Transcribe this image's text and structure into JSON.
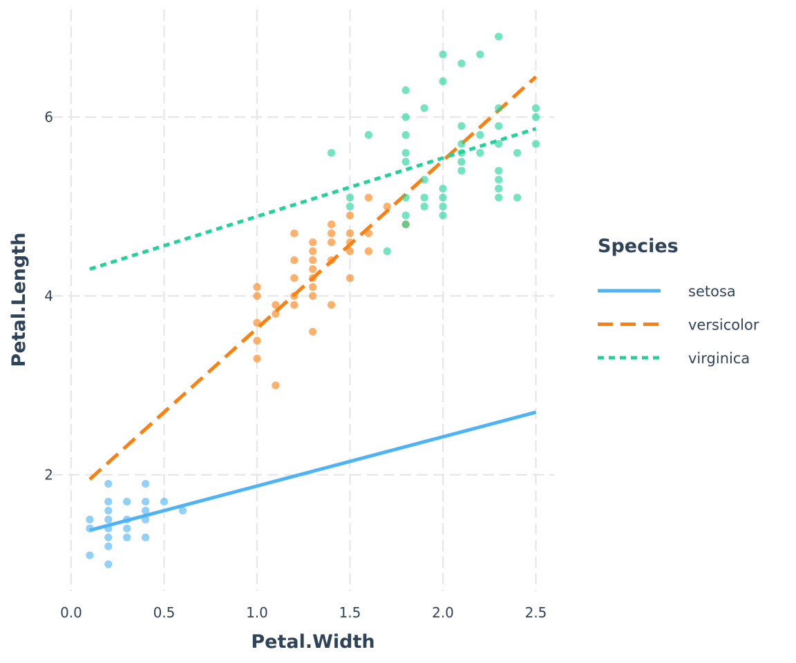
{
  "chart_data": {
    "type": "scatter",
    "xlabel": "Petal.Width",
    "ylabel": "Petal.Length",
    "xlim": [
      0,
      2.6
    ],
    "ylim": [
      0.7,
      7.2
    ],
    "x_ticks": [
      0.0,
      0.5,
      1.0,
      1.5,
      2.0,
      2.5
    ],
    "x_tick_labels": [
      "0.0",
      "0.5",
      "1.0",
      "1.5",
      "2.0",
      "2.5"
    ],
    "y_ticks": [
      2,
      4,
      6
    ],
    "y_tick_labels": [
      "2",
      "4",
      "6"
    ],
    "grid": true,
    "legend": {
      "title": "Species",
      "placement": "right",
      "entries": [
        {
          "name": "setosa",
          "color": "#4db3f5",
          "line_style": "solid"
        },
        {
          "name": "versicolor",
          "color": "#ff7f0e",
          "line_style": "dashed"
        },
        {
          "name": "virginica",
          "color": "#1fd39a",
          "line_style": "dotted"
        }
      ]
    },
    "series": [
      {
        "name": "setosa",
        "color": "#4db3f5",
        "points": [
          [
            0.1,
            1.1
          ],
          [
            0.1,
            1.4
          ],
          [
            0.1,
            1.5
          ],
          [
            0.2,
            1.0
          ],
          [
            0.2,
            1.2
          ],
          [
            0.2,
            1.3
          ],
          [
            0.2,
            1.4
          ],
          [
            0.2,
            1.5
          ],
          [
            0.2,
            1.6
          ],
          [
            0.2,
            1.7
          ],
          [
            0.2,
            1.9
          ],
          [
            0.3,
            1.3
          ],
          [
            0.3,
            1.4
          ],
          [
            0.3,
            1.5
          ],
          [
            0.3,
            1.7
          ],
          [
            0.4,
            1.3
          ],
          [
            0.4,
            1.5
          ],
          [
            0.4,
            1.6
          ],
          [
            0.4,
            1.7
          ],
          [
            0.4,
            1.9
          ],
          [
            0.5,
            1.7
          ],
          [
            0.6,
            1.6
          ]
        ],
        "fit": {
          "x": [
            0.1,
            2.5
          ],
          "y": [
            1.38,
            2.7
          ]
        }
      },
      {
        "name": "versicolor",
        "color": "#ff7f0e",
        "points": [
          [
            1.0,
            3.3
          ],
          [
            1.0,
            3.5
          ],
          [
            1.0,
            3.7
          ],
          [
            1.0,
            4.0
          ],
          [
            1.0,
            4.1
          ],
          [
            1.1,
            3.0
          ],
          [
            1.1,
            3.8
          ],
          [
            1.1,
            3.9
          ],
          [
            1.2,
            3.9
          ],
          [
            1.2,
            4.0
          ],
          [
            1.2,
            4.2
          ],
          [
            1.2,
            4.4
          ],
          [
            1.2,
            4.7
          ],
          [
            1.3,
            3.6
          ],
          [
            1.3,
            4.0
          ],
          [
            1.3,
            4.1
          ],
          [
            1.3,
            4.2
          ],
          [
            1.3,
            4.3
          ],
          [
            1.3,
            4.4
          ],
          [
            1.3,
            4.5
          ],
          [
            1.3,
            4.6
          ],
          [
            1.4,
            3.9
          ],
          [
            1.4,
            4.4
          ],
          [
            1.4,
            4.6
          ],
          [
            1.4,
            4.7
          ],
          [
            1.4,
            4.8
          ],
          [
            1.5,
            4.2
          ],
          [
            1.5,
            4.5
          ],
          [
            1.5,
            4.6
          ],
          [
            1.5,
            4.7
          ],
          [
            1.5,
            4.9
          ],
          [
            1.6,
            4.5
          ],
          [
            1.6,
            4.7
          ],
          [
            1.6,
            5.1
          ],
          [
            1.7,
            5.0
          ],
          [
            1.8,
            4.8
          ]
        ],
        "fit": {
          "x": [
            0.1,
            2.5
          ],
          "y": [
            1.95,
            6.45
          ]
        }
      },
      {
        "name": "virginica",
        "color": "#1fd39a",
        "points": [
          [
            1.4,
            5.6
          ],
          [
            1.5,
            5.0
          ],
          [
            1.5,
            5.1
          ],
          [
            1.6,
            5.8
          ],
          [
            1.7,
            4.5
          ],
          [
            1.8,
            4.8
          ],
          [
            1.8,
            4.9
          ],
          [
            1.8,
            5.1
          ],
          [
            1.8,
            5.5
          ],
          [
            1.8,
            5.6
          ],
          [
            1.8,
            5.8
          ],
          [
            1.8,
            6.0
          ],
          [
            1.8,
            6.3
          ],
          [
            1.9,
            5.0
          ],
          [
            1.9,
            5.1
          ],
          [
            1.9,
            5.3
          ],
          [
            1.9,
            6.1
          ],
          [
            2.0,
            4.9
          ],
          [
            2.0,
            5.0
          ],
          [
            2.0,
            5.1
          ],
          [
            2.0,
            5.2
          ],
          [
            2.0,
            6.4
          ],
          [
            2.0,
            6.7
          ],
          [
            2.1,
            5.4
          ],
          [
            2.1,
            5.5
          ],
          [
            2.1,
            5.6
          ],
          [
            2.1,
            5.7
          ],
          [
            2.1,
            5.9
          ],
          [
            2.1,
            6.6
          ],
          [
            2.2,
            5.6
          ],
          [
            2.2,
            5.8
          ],
          [
            2.2,
            6.7
          ],
          [
            2.3,
            5.1
          ],
          [
            2.3,
            5.2
          ],
          [
            2.3,
            5.3
          ],
          [
            2.3,
            5.4
          ],
          [
            2.3,
            5.7
          ],
          [
            2.3,
            5.9
          ],
          [
            2.3,
            6.1
          ],
          [
            2.3,
            6.9
          ],
          [
            2.4,
            5.1
          ],
          [
            2.4,
            5.6
          ],
          [
            2.5,
            5.7
          ],
          [
            2.5,
            6.0
          ],
          [
            2.5,
            6.1
          ]
        ],
        "fit": {
          "x": [
            0.1,
            2.5
          ],
          "y": [
            4.3,
            5.87
          ]
        }
      }
    ]
  }
}
